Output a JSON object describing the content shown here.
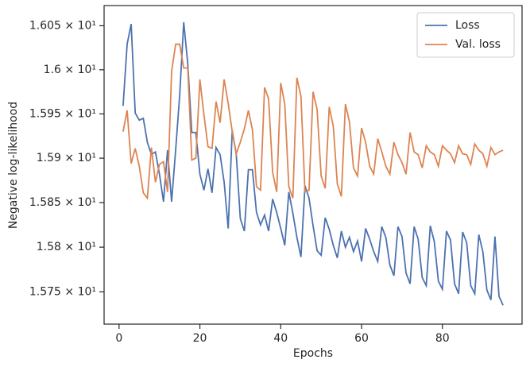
{
  "chart_data": {
    "type": "line",
    "xlabel": "Epochs",
    "ylabel": "Negative log-likelihood",
    "log_y": true,
    "legend": "upper right",
    "x": [
      1,
      2,
      3,
      4,
      5,
      6,
      7,
      8,
      9,
      10,
      11,
      12,
      13,
      14,
      15,
      16,
      17,
      18,
      19,
      20,
      21,
      22,
      23,
      24,
      25,
      26,
      27,
      28,
      29,
      30,
      31,
      32,
      33,
      34,
      35,
      36,
      37,
      38,
      39,
      40,
      41,
      42,
      43,
      44,
      45,
      46,
      47,
      48,
      49,
      50,
      51,
      52,
      53,
      54,
      55,
      56,
      57,
      58,
      59,
      60,
      61,
      62,
      63,
      64,
      65,
      66,
      67,
      68,
      69,
      70,
      71,
      72,
      73,
      74,
      75,
      76,
      77,
      78,
      79,
      80,
      81,
      82,
      83,
      84,
      85,
      86,
      87,
      88,
      89,
      90,
      91,
      92,
      93,
      94,
      95
    ],
    "series": [
      {
        "name": "Loss",
        "color": "#4c72b0",
        "values": [
          15.959,
          16.029,
          16.052,
          15.951,
          15.943,
          15.945,
          15.918,
          15.904,
          15.907,
          15.882,
          15.851,
          15.909,
          15.851,
          15.909,
          15.971,
          16.054,
          16.007,
          15.929,
          15.929,
          15.882,
          15.864,
          15.888,
          15.861,
          15.912,
          15.904,
          15.873,
          15.821,
          15.931,
          15.904,
          15.832,
          15.818,
          15.887,
          15.887,
          15.839,
          15.825,
          15.836,
          15.818,
          15.854,
          15.839,
          15.821,
          15.802,
          15.862,
          15.838,
          15.811,
          15.789,
          15.869,
          15.855,
          15.824,
          15.796,
          15.791,
          15.833,
          15.82,
          15.802,
          15.788,
          15.818,
          15.8,
          15.811,
          15.795,
          15.807,
          15.784,
          15.821,
          15.809,
          15.795,
          15.784,
          15.823,
          15.811,
          15.78,
          15.768,
          15.823,
          15.812,
          15.771,
          15.759,
          15.823,
          15.809,
          15.766,
          15.757,
          15.824,
          15.806,
          15.762,
          15.753,
          15.818,
          15.808,
          15.759,
          15.748,
          15.817,
          15.805,
          15.757,
          15.748,
          15.814,
          15.795,
          15.752,
          15.741,
          15.812,
          15.745,
          15.735
        ]
      },
      {
        "name": "Val. loss",
        "color": "#dd8452",
        "values": [
          15.93,
          15.954,
          15.894,
          15.911,
          15.891,
          15.861,
          15.855,
          15.912,
          15.873,
          15.893,
          15.896,
          15.862,
          15.998,
          16.029,
          16.029,
          16.002,
          16.002,
          15.898,
          15.9,
          15.989,
          15.949,
          15.913,
          15.911,
          15.964,
          15.94,
          15.989,
          15.962,
          15.93,
          15.905,
          15.918,
          15.933,
          15.954,
          15.932,
          15.868,
          15.864,
          15.98,
          15.967,
          15.884,
          15.862,
          15.985,
          15.961,
          15.868,
          15.855,
          15.991,
          15.97,
          15.862,
          15.864,
          15.975,
          15.955,
          15.88,
          15.866,
          15.958,
          15.936,
          15.871,
          15.857,
          15.961,
          15.941,
          15.889,
          15.88,
          15.934,
          15.918,
          15.891,
          15.882,
          15.922,
          15.907,
          15.891,
          15.882,
          15.918,
          15.904,
          15.895,
          15.882,
          15.929,
          15.907,
          15.904,
          15.889,
          15.914,
          15.907,
          15.904,
          15.891,
          15.914,
          15.909,
          15.905,
          15.895,
          15.914,
          15.905,
          15.904,
          15.893,
          15.916,
          15.909,
          15.905,
          15.891,
          15.912,
          15.904,
          15.907,
          15.909
        ]
      }
    ],
    "xlim": [
      -3.7,
      99.7
    ],
    "xticks": [
      0,
      20,
      40,
      60,
      80
    ],
    "ylim": [
      15.714,
      16.073
    ],
    "yticks": [
      {
        "value": 15.75,
        "label": "1.575 × 10¹"
      },
      {
        "value": 15.8,
        "label": "1.58 × 10¹"
      },
      {
        "value": 15.85,
        "label": "1.585 × 10¹"
      },
      {
        "value": 15.9,
        "label": "1.59 × 10¹"
      },
      {
        "value": 15.95,
        "label": "1.595 × 10¹"
      },
      {
        "value": 16.0,
        "label": "1.6 × 10¹"
      },
      {
        "value": 16.05,
        "label": "1.605 × 10¹"
      }
    ]
  }
}
